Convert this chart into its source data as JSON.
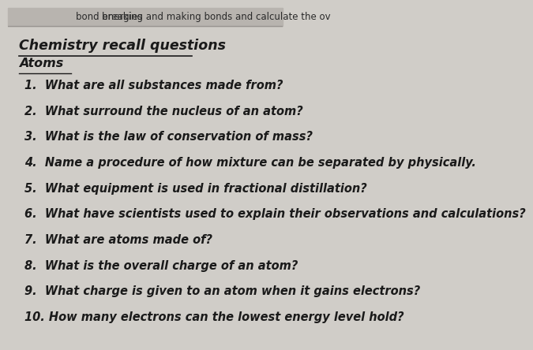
{
  "background_color": "#d0cdc8",
  "header_text": "bond energies",
  "header_right": "breaking and making bonds and calculate the ov",
  "title": "Chemistry recall questions",
  "subtitle": "Atoms",
  "questions": [
    "1.  What are all substances made from?",
    "2.  What surround the nucleus of an atom?",
    "3.  What is the law of conservation of mass?",
    "4.  Name a procedure of how mixture can be separated by physically.",
    "5.  What equipment is used in fractional distillation?",
    "6.  What have scientists used to explain their observations and calculations?",
    "7.  What are atoms made of?",
    "8.  What is the overall charge of an atom?",
    "9.  What charge is given to an atom when it gains electrons?",
    "10. How many electrons can the lowest energy level hold?"
  ],
  "text_color": "#1a1a1a",
  "header_color": "#2a2a2a",
  "title_fontsize": 12.5,
  "subtitle_fontsize": 11.5,
  "question_fontsize": 10.5,
  "header_fontsize": 8.5
}
